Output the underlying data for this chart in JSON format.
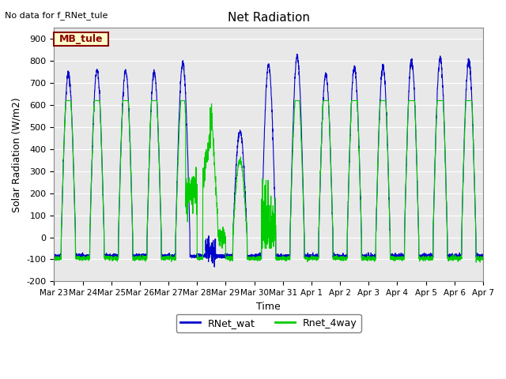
{
  "title": "Net Radiation",
  "xlabel": "Time",
  "ylabel": "Solar Radiation (W/m2)",
  "no_data_text": "No data for f_RNet_tule",
  "legend_label1": "RNet_wat",
  "legend_label2": "Rnet_4way",
  "legend_box_label": "MB_tule",
  "ylim": [
    -200,
    950
  ],
  "yticks": [
    -200,
    -100,
    0,
    100,
    200,
    300,
    400,
    500,
    600,
    700,
    800,
    900
  ],
  "color_blue": "#0000CC",
  "color_green": "#00CC00",
  "bg_color": "#E8E8E8",
  "legend_box_bg": "#FFFFCC",
  "legend_box_border": "#8B0000",
  "start_day": 82,
  "end_day": 97,
  "n_points": 3600
}
